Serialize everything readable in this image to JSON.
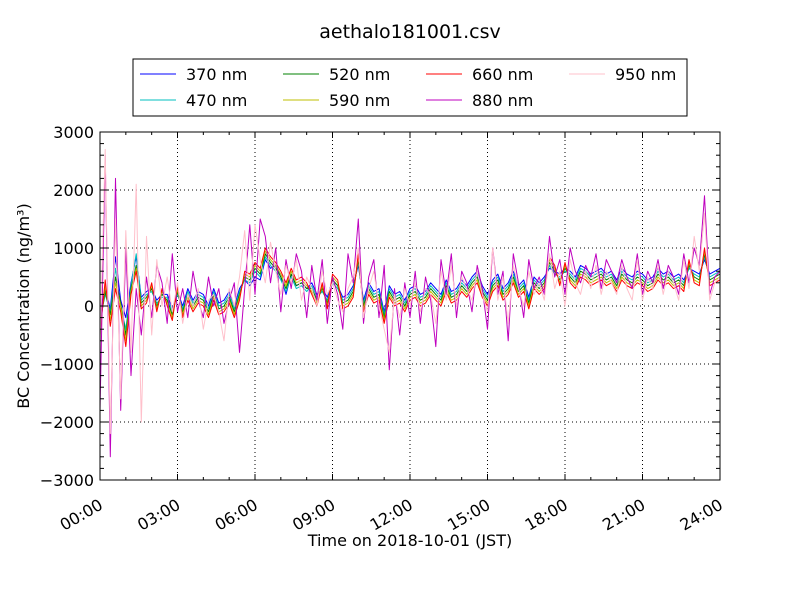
{
  "chart_data": {
    "type": "line",
    "title": "aethalo181001.csv",
    "xlabel": "Time on 2018-10-01 (JST)",
    "ylabel": "BC Concentration (ng/m³)",
    "xlim": [
      "00:00",
      "24:00"
    ],
    "ylim": [
      -3000,
      3000
    ],
    "grid": true,
    "legend_position": "top-center",
    "xticks": [
      "00:00",
      "03:00",
      "06:00",
      "09:00",
      "12:00",
      "15:00",
      "18:00",
      "21:00",
      "24:00"
    ],
    "yticks": [
      "3000",
      "2000",
      "1000",
      "0",
      "−1000",
      "−2000",
      "−3000"
    ],
    "x_hours": [
      0.0,
      0.2,
      0.4,
      0.6,
      0.8,
      1.0,
      1.2,
      1.4,
      1.6,
      1.8,
      2.0,
      2.2,
      2.4,
      2.6,
      2.8,
      3.0,
      3.2,
      3.4,
      3.6,
      3.8,
      4.0,
      4.2,
      4.4,
      4.6,
      4.8,
      5.0,
      5.2,
      5.4,
      5.6,
      5.8,
      6.0,
      6.2,
      6.4,
      6.6,
      6.8,
      7.0,
      7.2,
      7.4,
      7.6,
      7.8,
      8.0,
      8.2,
      8.4,
      8.6,
      8.8,
      9.0,
      9.2,
      9.4,
      9.6,
      9.8,
      10.0,
      10.2,
      10.4,
      10.6,
      10.8,
      11.0,
      11.2,
      11.4,
      11.6,
      11.8,
      12.0,
      12.2,
      12.4,
      12.6,
      12.8,
      13.0,
      13.2,
      13.4,
      13.6,
      13.8,
      14.0,
      14.2,
      14.4,
      14.6,
      14.8,
      15.0,
      15.2,
      15.4,
      15.6,
      15.8,
      16.0,
      16.2,
      16.4,
      16.6,
      16.8,
      17.0,
      17.2,
      17.4,
      17.6,
      17.8,
      18.0,
      18.2,
      18.4,
      18.6,
      18.8,
      19.0,
      19.2,
      19.4,
      19.6,
      19.8,
      20.0,
      20.2,
      20.4,
      20.6,
      20.8,
      21.0,
      21.2,
      21.4,
      21.6,
      21.8,
      22.0,
      22.2,
      22.4,
      22.6,
      22.8,
      23.0,
      23.2,
      23.4,
      23.6,
      23.8,
      24.0
    ],
    "series": [
      {
        "name": "370 nm",
        "color": "#0000ff",
        "values": [
          -150,
          300,
          -50,
          850,
          100,
          -200,
          400,
          850,
          150,
          250,
          300,
          100,
          200,
          200,
          -50,
          250,
          0,
          300,
          100,
          250,
          200,
          0,
          300,
          50,
          100,
          250,
          0,
          300,
          450,
          350,
          500,
          450,
          800,
          650,
          700,
          500,
          200,
          550,
          350,
          400,
          300,
          400,
          200,
          300,
          150,
          450,
          350,
          150,
          200,
          350,
          700,
          100,
          400,
          250,
          300,
          -100,
          350,
          200,
          250,
          100,
          300,
          350,
          200,
          250,
          400,
          300,
          200,
          450,
          250,
          300,
          450,
          350,
          500,
          600,
          350,
          200,
          450,
          550,
          300,
          400,
          600,
          350,
          450,
          150,
          500,
          400,
          500,
          650,
          600,
          550,
          650,
          600,
          500,
          700,
          650,
          550,
          600,
          650,
          550,
          600,
          450,
          650,
          550,
          500,
          600,
          550,
          450,
          500,
          650,
          550,
          600,
          500,
          550,
          450,
          650,
          600,
          550,
          800,
          550,
          600,
          650
        ]
      },
      {
        "name": "470 nm",
        "color": "#00bfbf",
        "values": [
          -250,
          200,
          -100,
          650,
          0,
          -400,
          350,
          900,
          100,
          200,
          250,
          50,
          150,
          150,
          -100,
          200,
          -50,
          250,
          50,
          200,
          150,
          -50,
          250,
          0,
          50,
          200,
          -50,
          250,
          450,
          400,
          600,
          500,
          850,
          700,
          600,
          450,
          250,
          500,
          300,
          350,
          250,
          350,
          150,
          250,
          100,
          400,
          300,
          100,
          150,
          300,
          750,
          50,
          350,
          200,
          250,
          -150,
          300,
          150,
          200,
          50,
          250,
          300,
          150,
          200,
          350,
          250,
          150,
          400,
          200,
          250,
          400,
          300,
          450,
          550,
          300,
          150,
          400,
          500,
          250,
          350,
          550,
          300,
          400,
          100,
          450,
          350,
          450,
          700,
          550,
          500,
          600,
          550,
          450,
          650,
          600,
          500,
          550,
          600,
          500,
          550,
          400,
          600,
          500,
          450,
          550,
          500,
          400,
          450,
          600,
          500,
          550,
          450,
          500,
          400,
          650,
          550,
          500,
          850,
          500,
          550,
          600
        ]
      },
      {
        "name": "520 nm",
        "color": "#008000",
        "values": [
          -300,
          250,
          -150,
          500,
          50,
          -500,
          300,
          700,
          50,
          150,
          300,
          0,
          200,
          100,
          -150,
          250,
          -100,
          200,
          0,
          150,
          100,
          -100,
          200,
          -50,
          0,
          150,
          -100,
          200,
          500,
          450,
          650,
          550,
          900,
          750,
          650,
          500,
          300,
          550,
          350,
          400,
          300,
          300,
          100,
          300,
          50,
          450,
          350,
          50,
          100,
          250,
          800,
          0,
          300,
          150,
          200,
          -200,
          250,
          100,
          150,
          0,
          200,
          250,
          100,
          150,
          300,
          200,
          100,
          350,
          150,
          200,
          350,
          250,
          400,
          500,
          250,
          100,
          350,
          450,
          200,
          300,
          500,
          250,
          350,
          50,
          400,
          300,
          400,
          750,
          600,
          450,
          650,
          500,
          400,
          600,
          550,
          450,
          500,
          550,
          450,
          500,
          350,
          550,
          450,
          400,
          500,
          450,
          350,
          400,
          550,
          450,
          500,
          400,
          450,
          350,
          700,
          500,
          450,
          900,
          450,
          500,
          550
        ]
      },
      {
        "name": "590 nm",
        "color": "#bfbf00",
        "values": [
          -400,
          350,
          -250,
          400,
          0,
          -600,
          250,
          650,
          0,
          100,
          350,
          -50,
          250,
          50,
          -200,
          300,
          -150,
          150,
          -50,
          100,
          50,
          -150,
          150,
          -100,
          -50,
          100,
          -150,
          150,
          550,
          500,
          700,
          600,
          950,
          800,
          700,
          550,
          350,
          600,
          400,
          450,
          350,
          250,
          50,
          350,
          0,
          500,
          400,
          0,
          50,
          200,
          850,
          -50,
          250,
          100,
          150,
          -250,
          200,
          50,
          100,
          -50,
          150,
          200,
          50,
          100,
          250,
          150,
          50,
          300,
          100,
          150,
          300,
          200,
          350,
          450,
          200,
          50,
          300,
          400,
          150,
          250,
          450,
          200,
          300,
          0,
          350,
          250,
          350,
          800,
          650,
          400,
          700,
          450,
          350,
          550,
          500,
          400,
          450,
          500,
          400,
          450,
          300,
          500,
          400,
          350,
          450,
          400,
          300,
          350,
          500,
          400,
          450,
          350,
          400,
          300,
          750,
          450,
          400,
          950,
          400,
          450,
          500
        ]
      },
      {
        "name": "660 nm",
        "color": "#ff0000",
        "values": [
          -500,
          450,
          -350,
          300,
          -100,
          -700,
          200,
          600,
          -50,
          50,
          400,
          -100,
          300,
          0,
          -250,
          350,
          -200,
          100,
          -100,
          50,
          0,
          -200,
          100,
          -150,
          -100,
          50,
          -200,
          100,
          600,
          550,
          750,
          650,
          1000,
          850,
          750,
          600,
          400,
          650,
          450,
          500,
          400,
          200,
          0,
          400,
          -50,
          550,
          450,
          -50,
          0,
          150,
          900,
          -100,
          200,
          50,
          100,
          -300,
          150,
          0,
          50,
          -100,
          100,
          150,
          0,
          50,
          200,
          100,
          0,
          250,
          50,
          100,
          250,
          150,
          300,
          400,
          150,
          0,
          250,
          350,
          100,
          200,
          400,
          150,
          250,
          -50,
          300,
          200,
          300,
          850,
          700,
          350,
          750,
          400,
          300,
          500,
          450,
          350,
          400,
          450,
          350,
          400,
          250,
          450,
          350,
          300,
          400,
          350,
          250,
          300,
          450,
          350,
          400,
          300,
          350,
          250,
          800,
          400,
          350,
          1000,
          350,
          400,
          450
        ]
      },
      {
        "name": "880 nm",
        "color": "#bf00bf",
        "values": [
          -1800,
          2600,
          -2600,
          2200,
          -1800,
          1000,
          -1200,
          300,
          -500,
          500,
          -200,
          700,
          400,
          -300,
          900,
          -100,
          300,
          -200,
          600,
          100,
          -200,
          500,
          0,
          300,
          -300,
          100,
          400,
          -800,
          300,
          1400,
          200,
          1500,
          1200,
          400,
          1000,
          -100,
          800,
          300,
          900,
          600,
          -200,
          700,
          100,
          800,
          -300,
          500,
          200,
          -400,
          900,
          400,
          1500,
          -300,
          500,
          800,
          -200,
          700,
          -1100,
          300,
          -500,
          400,
          -200,
          600,
          -300,
          500,
          100,
          -700,
          800,
          200,
          900,
          -200,
          600,
          400,
          -100,
          700,
          300,
          -400,
          1000,
          200,
          600,
          -600,
          900,
          400,
          -200,
          800,
          300,
          500,
          200,
          1200,
          500,
          800,
          200,
          1000,
          600,
          400,
          700,
          500,
          900,
          300,
          800,
          600,
          400,
          800,
          500,
          300,
          900,
          200,
          600,
          400,
          800,
          300,
          700,
          500,
          200,
          900,
          400,
          1000,
          700,
          1900,
          200,
          500,
          600
        ]
      },
      {
        "name": "950 nm",
        "color": "#ffc0cb",
        "values": [
          -700,
          2700,
          -2200,
          1500,
          -1600,
          1300,
          -800,
          2100,
          -2000,
          1200,
          -500,
          800,
          0,
          500,
          -100,
          400,
          -300,
          200,
          0,
          300,
          -400,
          100,
          200,
          -100,
          -600,
          300,
          0,
          500,
          1300,
          100,
          1400,
          800,
          400,
          1100,
          600,
          200,
          700,
          400,
          800,
          100,
          500,
          300,
          0,
          600,
          200,
          400,
          100,
          -100,
          300,
          500,
          1000,
          -200,
          300,
          600,
          0,
          -400,
          -800,
          200,
          -200,
          300,
          0,
          400,
          -100,
          300,
          200,
          -300,
          600,
          100,
          700,
          0,
          500,
          300,
          100,
          600,
          200,
          -100,
          1000,
          100,
          500,
          -300,
          700,
          300,
          0,
          600,
          200,
          400,
          100,
          900,
          300,
          600,
          0,
          800,
          400,
          200,
          600,
          300,
          700,
          200,
          600,
          400,
          200,
          700,
          300,
          100,
          800,
          100,
          500,
          300,
          700,
          200,
          600,
          400,
          100,
          800,
          300,
          1200,
          600,
          1600,
          100,
          400,
          500
        ]
      }
    ]
  }
}
